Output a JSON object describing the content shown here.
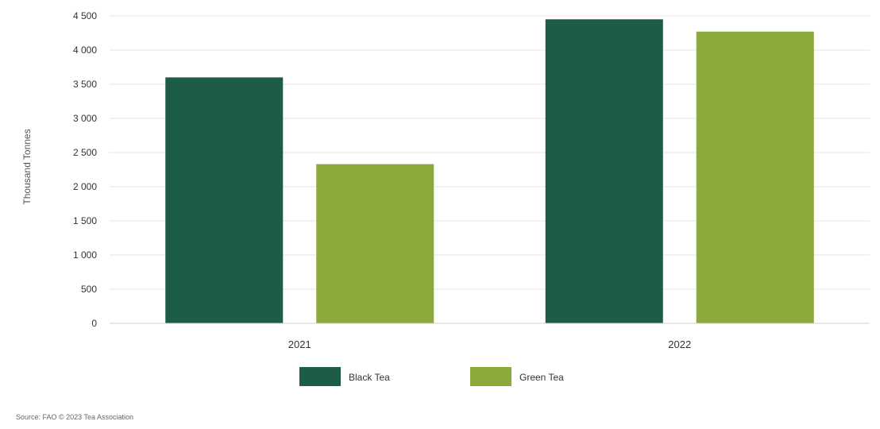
{
  "chart_data": {
    "type": "bar",
    "categories": [
      "2021",
      "2022"
    ],
    "series": [
      {
        "name": "Black Tea",
        "values": [
          3600,
          4450
        ],
        "color": "#1e5c4a"
      },
      {
        "name": "Green Tea",
        "values": [
          2330,
          4270
        ],
        "color": "#8aaa3c"
      }
    ],
    "yticks": [
      0,
      500,
      1000,
      1500,
      2000,
      2500,
      3000,
      3500,
      4000,
      4500
    ],
    "ytick_labels": [
      "0",
      "500",
      "1 000",
      "1 500",
      "2 000",
      "2 500",
      "3 000",
      "3 500",
      "4 000",
      "4 500"
    ],
    "ylim": [
      0,
      4500
    ],
    "ylabel": "Thousand Tonnes",
    "title": "",
    "xlabel": "",
    "grid": true,
    "legend_position": "bottom-center"
  },
  "source": "Source: FAO © 2023 Tea Association"
}
